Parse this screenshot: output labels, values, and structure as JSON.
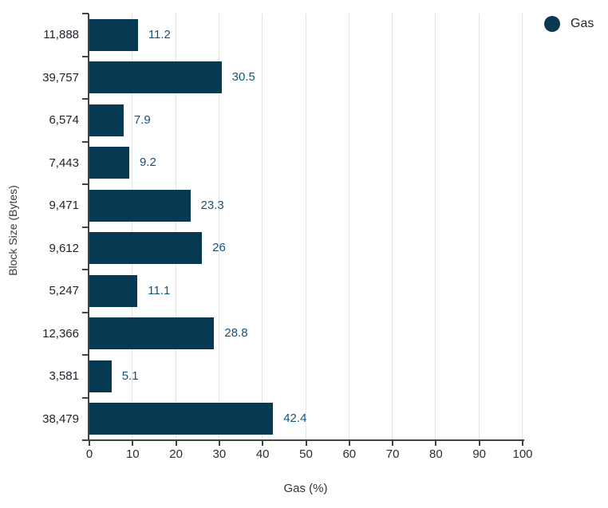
{
  "chart_data": {
    "type": "bar",
    "orientation": "horizontal",
    "title": "",
    "categories": [
      "11,888",
      "39,757",
      "6,574",
      "7,443",
      "9,471",
      "9,612",
      "5,247",
      "12,366",
      "3,581",
      "38,479"
    ],
    "series": [
      {
        "name": "Gas",
        "values": [
          11.2,
          30.5,
          7.9,
          9.2,
          23.3,
          26,
          11.1,
          28.8,
          5.1,
          42.4
        ],
        "value_labels": [
          "11.2",
          "30.5",
          "7.9",
          "9.2",
          "23.3",
          "26",
          "11.1",
          "28.8",
          "5.1",
          "42.4"
        ]
      }
    ],
    "xlabel": "Gas (%)",
    "ylabel": "Block Size (Bytes)",
    "xlim": [
      0,
      100
    ],
    "x_ticks": [
      0,
      10,
      20,
      30,
      40,
      50,
      60,
      70,
      80,
      90,
      100
    ],
    "grid": true,
    "legend_position": "top-right",
    "colors": {
      "bar": "#073a52",
      "value_label": "#175379",
      "legend_marker": "#0a3a52"
    }
  },
  "legend": {
    "label": "Gas"
  },
  "axes": {
    "x_title": "Gas (%)",
    "y_title": "Block Size (Bytes)"
  }
}
